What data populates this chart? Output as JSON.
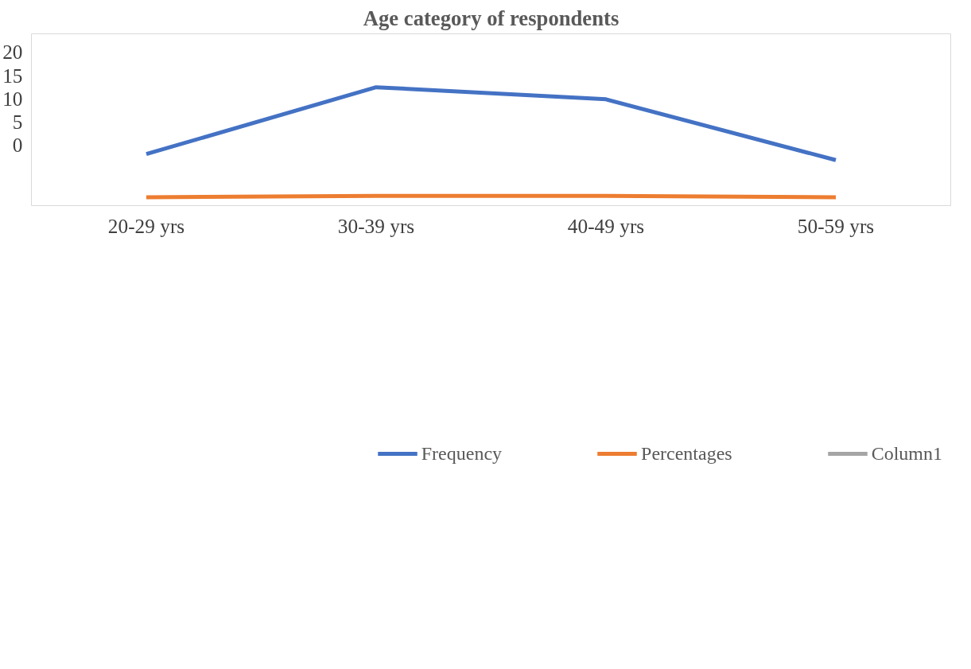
{
  "chart_data": {
    "type": "line",
    "title": "Age category of respondents",
    "categories": [
      "20-29 yrs",
      "30-39 yrs",
      "40-49 yrs",
      "50-59 yrs"
    ],
    "series": [
      {
        "name": "Frequency",
        "color": "#4472c4",
        "values": [
          -1.9,
          12.5,
          9.9,
          -3.2
        ]
      },
      {
        "name": "Percentages",
        "color": "#ed7d31",
        "values": [
          -11.2,
          -10.9,
          -10.9,
          -11.2
        ]
      },
      {
        "name": "Column1",
        "color": "#a5a5a5",
        "values": [
          null,
          null,
          null,
          null
        ]
      }
    ],
    "ylim": [
      -13,
      24
    ],
    "yticks": [
      0,
      5,
      10,
      15,
      20
    ],
    "grid": false,
    "legend": "bottom",
    "marker": "none",
    "line_style": "solid"
  }
}
